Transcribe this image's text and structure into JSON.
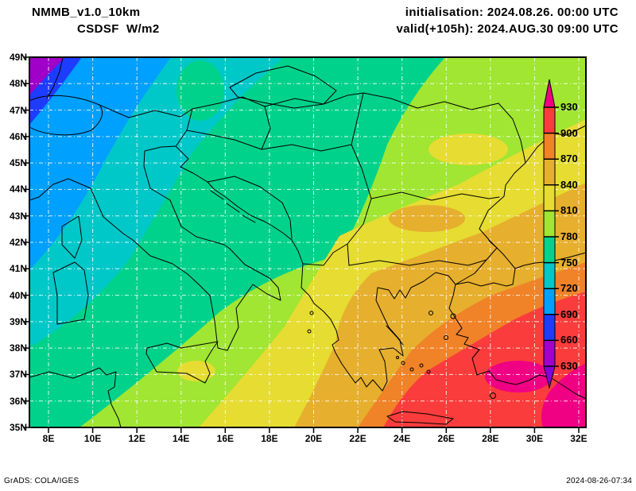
{
  "header": {
    "model": "NMMB_v1.0_10km",
    "variable": "CSDSF  W/m2",
    "initialisation": "initialisation: 2024.08.26. 00:00 UTC",
    "valid": "valid(+105h): 2024.AUG.30 09:00 UTC"
  },
  "footer": {
    "left": "GrADS: COLA/IGES",
    "right": "2024-08-26-07:34"
  },
  "axes": {
    "lat_labels": [
      "49N",
      "48N",
      "47N",
      "46N",
      "45N",
      "44N",
      "43N",
      "42N",
      "41N",
      "40N",
      "39N",
      "38N",
      "37N",
      "36N",
      "35N"
    ],
    "lon_labels": [
      "8E",
      "10E",
      "12E",
      "14E",
      "16E",
      "18E",
      "20E",
      "22E",
      "24E",
      "26E",
      "28E",
      "30E",
      "32E"
    ]
  },
  "colorbar": {
    "tick_labels": [
      "930",
      "900",
      "870",
      "840",
      "810",
      "780",
      "750",
      "720",
      "690",
      "660",
      "630"
    ],
    "palette": {
      "below_630": "#8200dc",
      "c630_660": "#a000c8",
      "c660_690": "#1e3cff",
      "c690_720": "#00a0ff",
      "c720_750": "#00c8c8",
      "c750_780": "#00d28c",
      "c780_810": "#a0e632",
      "c810_840": "#e6dc32",
      "c840_870": "#e6af2d",
      "c870_900": "#f08228",
      "c900_930": "#fa3c3c",
      "above_930": "#f00082"
    }
  },
  "chart_data": {
    "type": "heatmap",
    "title": "NMMB_v1.0_10km CSDSF W/m2",
    "units": "W/m2",
    "lon_range": [
      8,
      32
    ],
    "lat_range": [
      35,
      49
    ],
    "contour_levels": [
      630,
      660,
      690,
      720,
      750,
      780,
      810,
      840,
      870,
      900,
      930
    ],
    "legend_position": "right-inside",
    "grid": "on",
    "sampled_grid": {
      "lons": [
        8,
        10,
        12,
        14,
        16,
        18,
        20,
        22,
        24,
        26,
        28,
        30,
        32
      ],
      "lats": [
        49,
        47,
        45,
        43,
        41,
        39,
        37,
        35
      ],
      "values_Wm2": [
        [
          650,
          675,
          700,
          730,
          740,
          765,
          770,
          775,
          790,
          795,
          795,
          800,
          800
        ],
        [
          680,
          705,
          710,
          730,
          740,
          760,
          770,
          775,
          790,
          795,
          800,
          815,
          820
        ],
        [
          705,
          710,
          725,
          735,
          745,
          760,
          770,
          785,
          790,
          795,
          815,
          820,
          825
        ],
        [
          715,
          725,
          735,
          745,
          765,
          770,
          785,
          790,
          815,
          820,
          825,
          845,
          850
        ],
        [
          730,
          755,
          765,
          770,
          785,
          790,
          815,
          845,
          850,
          855,
          875,
          885,
          905
        ],
        [
          760,
          765,
          770,
          785,
          795,
          815,
          825,
          850,
          875,
          885,
          905,
          915,
          920
        ],
        [
          765,
          770,
          785,
          795,
          815,
          825,
          845,
          855,
          880,
          905,
          915,
          935,
          925
        ],
        [
          770,
          785,
          795,
          815,
          825,
          845,
          855,
          875,
          890,
          910,
          920,
          920,
          935
        ]
      ]
    }
  }
}
